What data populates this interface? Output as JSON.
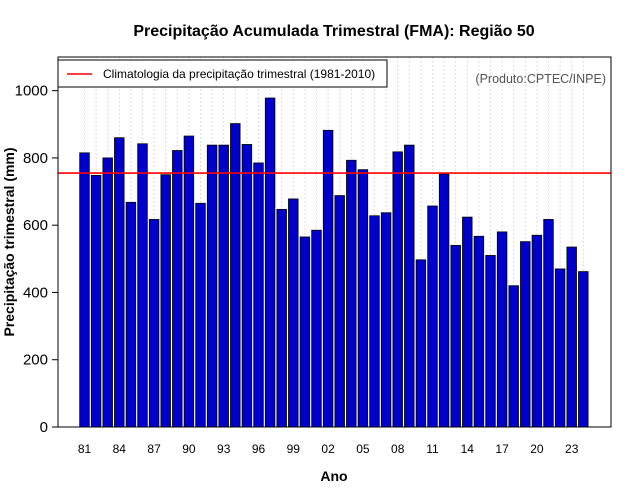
{
  "chart_data": {
    "type": "bar",
    "title": "Precipitação Acumulada Trimestral (FMA): Região 50",
    "xlabel": "Ano",
    "ylabel": "Precipitação trimestral (mm)",
    "ylim": [
      0,
      1100
    ],
    "yticks": [
      0,
      200,
      400,
      600,
      800,
      1000
    ],
    "grid": "vertical dotted",
    "categories": [
      "1981",
      "1982",
      "1983",
      "1984",
      "1985",
      "1986",
      "1987",
      "1988",
      "1989",
      "1990",
      "1991",
      "1992",
      "1993",
      "1994",
      "1995",
      "1996",
      "1997",
      "1998",
      "1999",
      "2000",
      "2001",
      "2002",
      "2003",
      "2004",
      "2005",
      "2006",
      "2007",
      "2008",
      "2009",
      "2010",
      "2011",
      "2012",
      "2013",
      "2014",
      "2015",
      "2016",
      "2017",
      "2018",
      "2019",
      "2020",
      "2021",
      "2022",
      "2023",
      "2024"
    ],
    "tick_labels": [
      {
        "index": 0,
        "label": "81"
      },
      {
        "index": 3,
        "label": "84"
      },
      {
        "index": 6,
        "label": "87"
      },
      {
        "index": 9,
        "label": "90"
      },
      {
        "index": 12,
        "label": "93"
      },
      {
        "index": 15,
        "label": "96"
      },
      {
        "index": 18,
        "label": "99"
      },
      {
        "index": 21,
        "label": "02"
      },
      {
        "index": 24,
        "label": "05"
      },
      {
        "index": 27,
        "label": "08"
      },
      {
        "index": 30,
        "label": "11"
      },
      {
        "index": 33,
        "label": "14"
      },
      {
        "index": 36,
        "label": "17"
      },
      {
        "index": 39,
        "label": "20"
      },
      {
        "index": 42,
        "label": "23"
      }
    ],
    "series": [
      {
        "name": "Precipitação trimestral",
        "color": "#0000cd",
        "values": [
          815,
          748,
          800,
          860,
          668,
          842,
          617,
          750,
          822,
          865,
          665,
          838,
          838,
          902,
          840,
          785,
          978,
          647,
          678,
          565,
          585,
          882,
          688,
          793,
          765,
          628,
          637,
          818,
          838,
          497,
          657,
          752,
          540,
          624,
          567,
          510,
          580,
          420,
          551,
          570,
          617,
          470,
          535,
          462
        ]
      }
    ],
    "climatology": {
      "label": "Climatologia da precipitação trimestral (1981-2010)",
      "value": 755,
      "color": "#ff0000"
    },
    "legend": "top-left",
    "credit": "(Produto:CPTEC/INPE)"
  }
}
